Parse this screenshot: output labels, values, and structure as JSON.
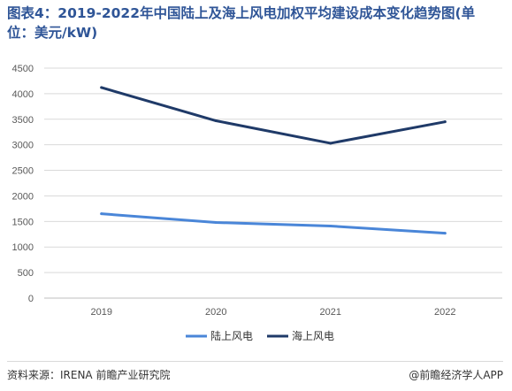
{
  "title": "图表4：2019-2022年中国陆上及海上风电加权平均建设成本变化趋势图(单位：美元/kW)",
  "footer": {
    "source": "资料来源：IRENA 前瞻产业研究院",
    "brand": "@前瞻经济学人APP"
  },
  "colors": {
    "onshore": "#4a86d8",
    "offshore": "#1f3a68",
    "grid": "#d9d9d9",
    "title": "#2f5597"
  },
  "chart_data": {
    "type": "line",
    "title": "图表4：2019-2022年中国陆上及海上风电加权平均建设成本变化趋势图(单位：美元/kW)",
    "xlabel": "",
    "ylabel": "",
    "categories": [
      "2019",
      "2020",
      "2021",
      "2022"
    ],
    "ylim": [
      0,
      4500
    ],
    "yticks": [
      0,
      500,
      1000,
      1500,
      2000,
      2500,
      3000,
      3500,
      4000,
      4500
    ],
    "grid": true,
    "legend_position": "bottom",
    "series": [
      {
        "name": "陆上风电",
        "color": "#4a86d8",
        "values": [
          1650,
          1480,
          1410,
          1270
        ]
      },
      {
        "name": "海上风电",
        "color": "#1f3a68",
        "values": [
          4120,
          3470,
          3030,
          3450
        ]
      }
    ]
  }
}
